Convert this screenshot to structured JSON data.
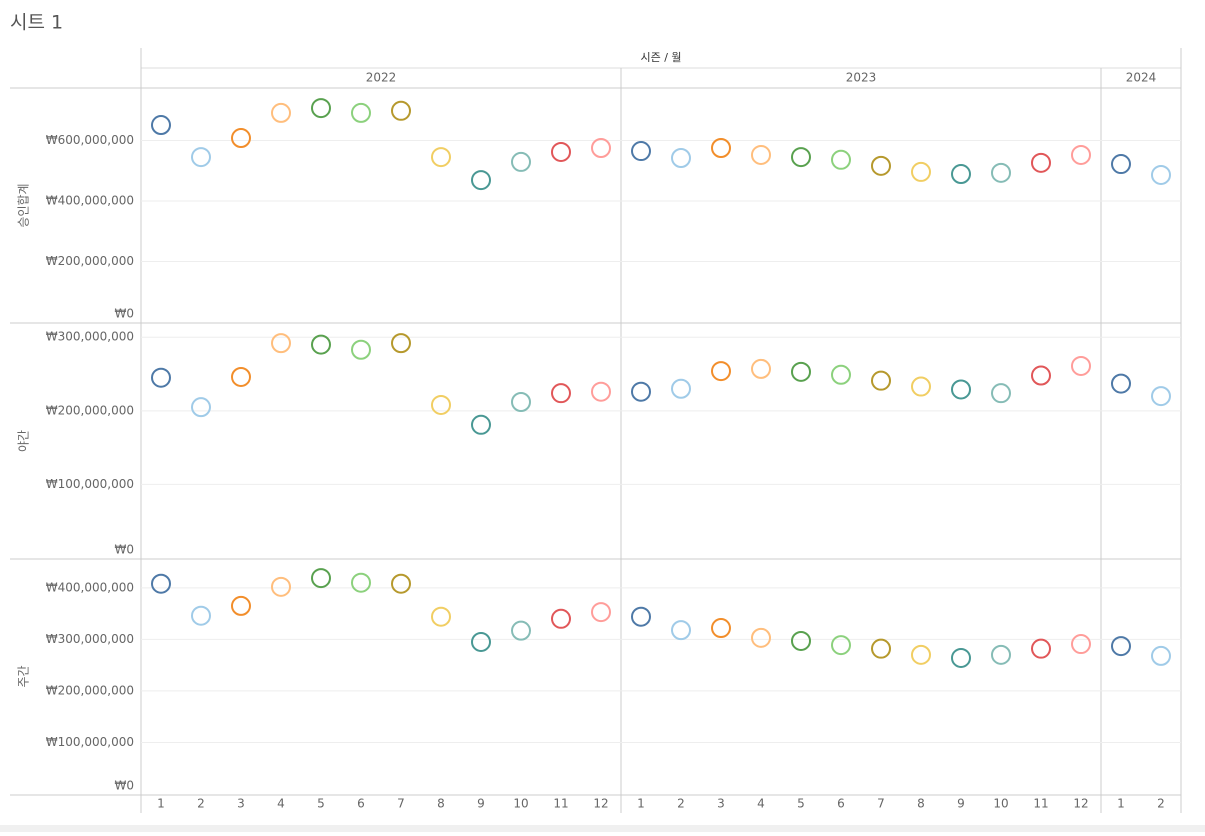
{
  "title": "시트 1",
  "columns": {
    "title": "시즌 / 월",
    "years": [
      {
        "label": "2022",
        "months": [
          1,
          2,
          3,
          4,
          5,
          6,
          7,
          8,
          9,
          10,
          11,
          12
        ]
      },
      {
        "label": "2023",
        "months": [
          1,
          2,
          3,
          4,
          5,
          6,
          7,
          8,
          9,
          10,
          11,
          12
        ]
      },
      {
        "label": "2024",
        "months": [
          1,
          2
        ]
      }
    ]
  },
  "colors": [
    "#4e79a7",
    "#a0cbe8",
    "#f28e2b",
    "#ffbe7d",
    "#59a14f",
    "#8cd17d",
    "#b6992d",
    "#f1ce63",
    "#499894",
    "#86bcb6",
    "#e15759",
    "#ff9d9a"
  ],
  "grid": true,
  "chart_data": [
    {
      "type": "scatter",
      "ylabel": "승인합계",
      "values": [
        651000000,
        545000000,
        608000000,
        691000000,
        707000000,
        691000000,
        698000000,
        545000000,
        469000000,
        529000000,
        562000000,
        575000000,
        565000000,
        542000000,
        575000000,
        552000000,
        545000000,
        536000000,
        516000000,
        496000000,
        489000000,
        493000000,
        526000000,
        552000000,
        522000000,
        486000000
      ],
      "ylim": [
        0,
        770000000
      ],
      "yticks": [
        {
          "value": 0,
          "label": "₩0"
        },
        {
          "value": 200000000,
          "label": "₩200,000,000"
        },
        {
          "value": 400000000,
          "label": "₩400,000,000"
        },
        {
          "value": 600000000,
          "label": "₩600,000,000"
        }
      ]
    },
    {
      "type": "scatter",
      "ylabel": "야간",
      "values": [
        245000000,
        205000000,
        246000000,
        292000000,
        290000000,
        283000000,
        292000000,
        208000000,
        181000000,
        212000000,
        224000000,
        226000000,
        226000000,
        230000000,
        254000000,
        257000000,
        253000000,
        249000000,
        241000000,
        233000000,
        229000000,
        224000000,
        248000000,
        261000000,
        237000000,
        220000000
      ],
      "ylim": [
        0,
        318000000
      ],
      "yticks": [
        {
          "value": 0,
          "label": "₩0"
        },
        {
          "value": 100000000,
          "label": "₩100,000,000"
        },
        {
          "value": 200000000,
          "label": "₩200,000,000"
        },
        {
          "value": 300000000,
          "label": "₩300,000,000"
        }
      ]
    },
    {
      "type": "scatter",
      "ylabel": "주간",
      "values": [
        408000000,
        346000000,
        365000000,
        402000000,
        419000000,
        410000000,
        408000000,
        344000000,
        295000000,
        317000000,
        340000000,
        353000000,
        344000000,
        318000000,
        322000000,
        303000000,
        297000000,
        289000000,
        282000000,
        270000000,
        264000000,
        270000000,
        282000000,
        291000000,
        287000000,
        268000000
      ],
      "ylim": [
        0,
        456000000
      ],
      "yticks": [
        {
          "value": 0,
          "label": "₩0"
        },
        {
          "value": 100000000,
          "label": "₩100,000,000"
        },
        {
          "value": 200000000,
          "label": "₩200,000,000"
        },
        {
          "value": 300000000,
          "label": "₩300,000,000"
        },
        {
          "value": 400000000,
          "label": "₩400,000,000"
        }
      ]
    }
  ]
}
